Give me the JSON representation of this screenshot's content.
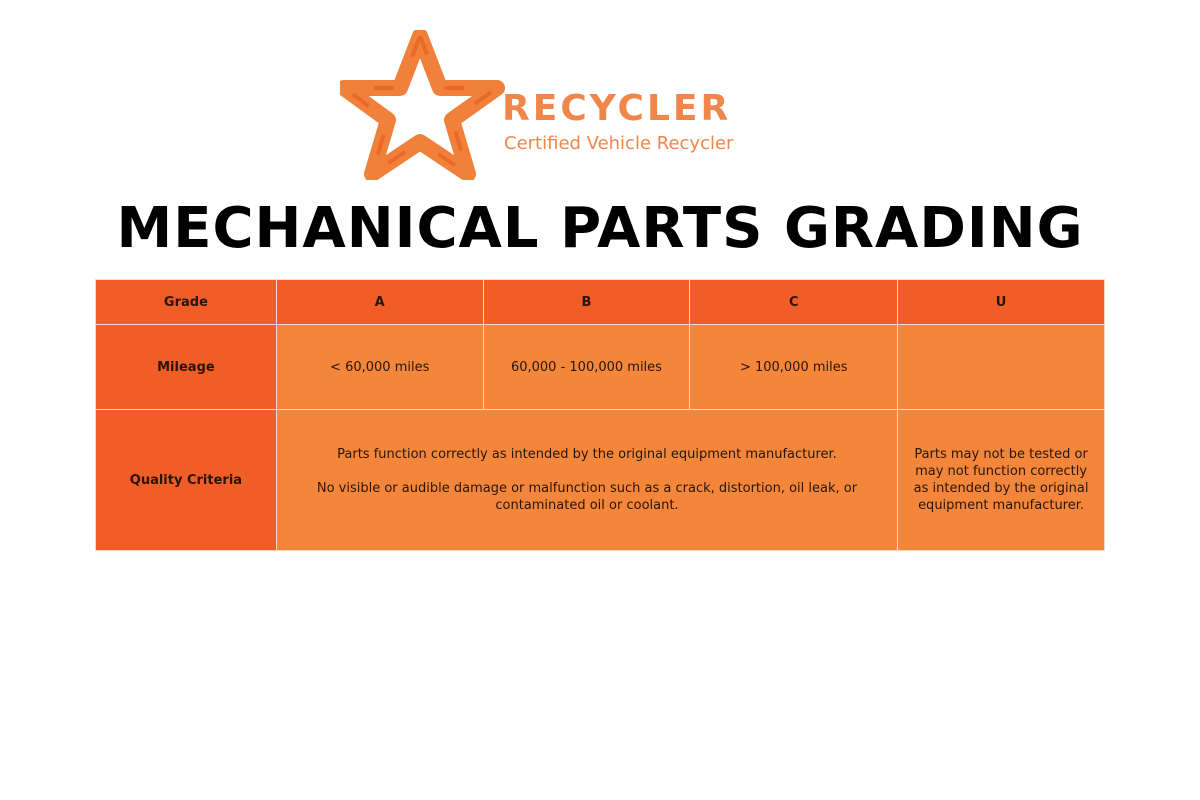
{
  "logo": {
    "brand": "RECYCLER",
    "tagline": "Certified Vehicle Recycler",
    "icon": "star-arrows-icon",
    "color": "#f0874a"
  },
  "title": "MECHANICAL PARTS GRADING",
  "colors": {
    "header": "#f15d27",
    "cell": "#f3863a"
  },
  "table": {
    "header": [
      "Grade",
      "A",
      "B",
      "C",
      "U"
    ],
    "mileage": {
      "label": "Mileage",
      "values": [
        "< 60,000 miles",
        "60,000 - 100,000 miles",
        "> 100,000 miles",
        ""
      ]
    },
    "quality": {
      "label": "Quality Criteria",
      "abc": [
        "Parts function correctly as intended by the original equipment manufacturer.",
        "No visible or audible damage or malfunction such as a crack, distortion, oil leak, or contaminated oil or coolant."
      ],
      "u": "Parts may not be tested or may not function correctly as intended by the original equipment manufacturer."
    }
  }
}
